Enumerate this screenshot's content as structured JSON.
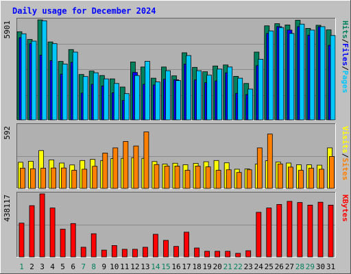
{
  "chart_data": {
    "type": "bar",
    "title": "Daily usage for December 2024",
    "categories": [
      "1",
      "2",
      "3",
      "4",
      "5",
      "6",
      "7",
      "8",
      "9",
      "10",
      "11",
      "12",
      "13",
      "14",
      "15",
      "16",
      "17",
      "18",
      "19",
      "20",
      "21",
      "22",
      "23",
      "24",
      "25",
      "26",
      "27",
      "28",
      "29",
      "30",
      "31"
    ],
    "weekend_days": [
      "1",
      "7",
      "8",
      "14",
      "15",
      "21",
      "22",
      "28",
      "29"
    ],
    "panels": [
      {
        "id": "hits",
        "ymax": 5901,
        "ymax_label": "5901",
        "axis_labels": [
          {
            "text": "Hits",
            "color": "#00805c"
          },
          {
            "text": "/",
            "color": "#000000"
          },
          {
            "text": "Files",
            "color": "#0000ff"
          },
          {
            "text": "/",
            "color": "#000000"
          },
          {
            "text": "Pages",
            "color": "#00c8ff"
          }
        ],
        "series": [
          {
            "name": "Hits",
            "color": "#00805c",
            "values": [
              5200,
              4750,
              5901,
              4600,
              3450,
              4150,
              2680,
              2880,
              2620,
              2420,
              1940,
              3420,
              3120,
              2460,
              3120,
              2600,
              3960,
              3100,
              2840,
              3180,
              3240,
              2570,
              2150,
              4000,
              5550,
              5680,
              5600,
              5880,
              5400,
              5580,
              5310
            ]
          },
          {
            "name": "Files",
            "color": "#0000ff",
            "values": [
              4850,
              4500,
              3820,
              3500,
              2700,
              3400,
              1580,
              2100,
              2000,
              1600,
              1150,
              2800,
              2100,
              2060,
              2400,
              2370,
              3300,
              2360,
              2200,
              2300,
              2780,
              1570,
              1500,
              3200,
              5100,
              5500,
              5300,
              5500,
              5000,
              5500,
              4400
            ]
          },
          {
            "name": "Pages",
            "color": "#00c8ff",
            "values": [
              5080,
              4650,
              5850,
              4500,
              3300,
              4000,
              2560,
              2780,
              2420,
              2150,
              1550,
              2620,
              3460,
              2240,
              2900,
              2320,
              3800,
              2900,
              2640,
              3000,
              3120,
              2460,
              1820,
              3580,
              5250,
              5450,
              5100,
              5650,
              5300,
              5500,
              4980
            ]
          }
        ]
      },
      {
        "id": "visits",
        "ymax": 592,
        "ymax_label": "592",
        "axis_labels": [
          {
            "text": "Visits",
            "color": "#ffff00"
          },
          {
            "text": "/",
            "color": "#000000"
          },
          {
            "text": "Sites",
            "color": "#ff8000"
          }
        ],
        "series": [
          {
            "name": "Visits",
            "color": "#ffff00",
            "values": [
              245,
              255,
              355,
              268,
              238,
              220,
              262,
              272,
              262,
              280,
              282,
              288,
              282,
              252,
              228,
              236,
              222,
              235,
              250,
              262,
              240,
              180,
              182,
              228,
              260,
              248,
              238,
              222,
              222,
              218,
              380
            ]
          },
          {
            "name": "Sites",
            "color": "#ff8000",
            "values": [
              190,
              185,
              190,
              192,
              192,
              170,
              180,
              208,
              332,
              380,
              440,
              398,
              530,
              224,
              210,
              210,
              170,
              210,
              202,
              170,
              175,
              150,
              175,
              380,
              510,
              230,
              200,
              170,
              190,
              180,
              300
            ]
          }
        ]
      },
      {
        "id": "kbytes",
        "ymax": 438117,
        "ymax_label": "438117",
        "axis_labels": [
          {
            "text": "KBytes",
            "color": "#ff0000"
          }
        ],
        "series": [
          {
            "name": "KBytes",
            "color": "#ff0000",
            "values": [
              235000,
              356000,
              438117,
              340000,
              193000,
              232000,
              67000,
              161000,
              47000,
              79000,
              53000,
              53000,
              67000,
              157000,
              115000,
              73000,
              172000,
              62000,
              39000,
              39000,
              39000,
              25000,
              43000,
              310000,
              340000,
              365000,
              386000,
              378000,
              360000,
              380000,
              360000
            ]
          }
        ]
      }
    ]
  }
}
